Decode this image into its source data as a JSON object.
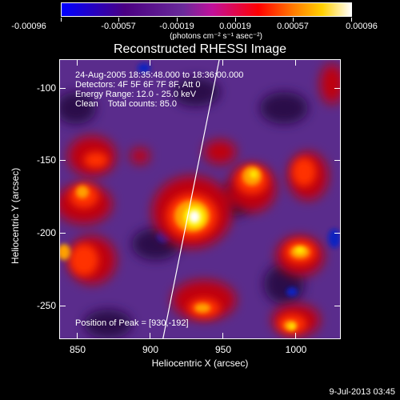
{
  "colorbar": {
    "tick_labels": [
      "-0.00096",
      "-0.00057",
      "-0.00019",
      "0.00019",
      "0.00057",
      "0.00096"
    ],
    "units": "(photons cm⁻² s⁻¹ asec⁻²)"
  },
  "title": "Reconstructed RHESSI Image",
  "annotations": {
    "time": "24-Aug-2005 18:35:48.000 to 18:36:00.000",
    "detectors": "Detectors: 4F 5F 6F 7F 8F, Att 0",
    "energy": "Energy Range: 12.0 - 25.0 keV",
    "clean": "Clean    Total counts: 85.0",
    "peak": "Position of Peak = [930,-192]"
  },
  "axes": {
    "xlabel": "Heliocentric X (arcsec)",
    "ylabel": "Heliocentric Y (arcsec)",
    "xticks": [
      "850",
      "900",
      "950",
      "1000"
    ],
    "yticks": [
      "-100",
      "-150",
      "-200",
      "-250"
    ],
    "xrange": [
      838,
      1032
    ],
    "yrange": [
      -272,
      -79
    ]
  },
  "footer": {
    "timestamp": "9-Jul-2013 03:45"
  },
  "colors": {
    "background": "#000000",
    "foreground": "#ffffff"
  }
}
